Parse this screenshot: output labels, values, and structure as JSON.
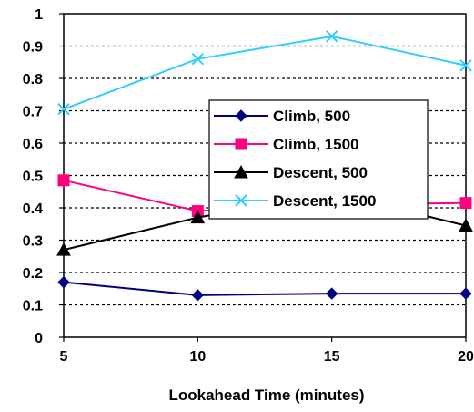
{
  "chart_data": {
    "type": "line",
    "xlabel": "Lookahead Time (minutes)",
    "ylabel": "",
    "title": "",
    "x": [
      5,
      10,
      15,
      20
    ],
    "xticks": [
      5,
      10,
      15,
      20
    ],
    "ylim": [
      0,
      1
    ],
    "yticks": [
      0,
      0.1,
      0.2,
      0.3,
      0.4,
      0.5,
      0.6,
      0.7,
      0.8,
      0.9,
      1
    ],
    "ytick_labels": [
      "0",
      "0.1",
      "0.2",
      "0.3",
      "0.4",
      "0.5",
      "0.6",
      "0.7",
      "0.8",
      "0.9",
      "1"
    ],
    "grid": "horizontal dotted",
    "legend_position": "center-right",
    "series": [
      {
        "name": "Climb, 500",
        "values": [
          0.17,
          0.13,
          0.135,
          0.135
        ],
        "color": "#000080",
        "marker": "diamond"
      },
      {
        "name": "Climb, 1500",
        "values": [
          0.485,
          0.39,
          0.41,
          0.415
        ],
        "color": "#FF0080",
        "marker": "square"
      },
      {
        "name": "Descent, 500",
        "values": [
          0.27,
          0.37,
          0.445,
          0.345
        ],
        "color": "#000000",
        "marker": "triangle"
      },
      {
        "name": "Descent, 1500",
        "values": [
          0.705,
          0.86,
          0.93,
          0.84
        ],
        "color": "#33CCFF",
        "marker": "x"
      }
    ]
  }
}
